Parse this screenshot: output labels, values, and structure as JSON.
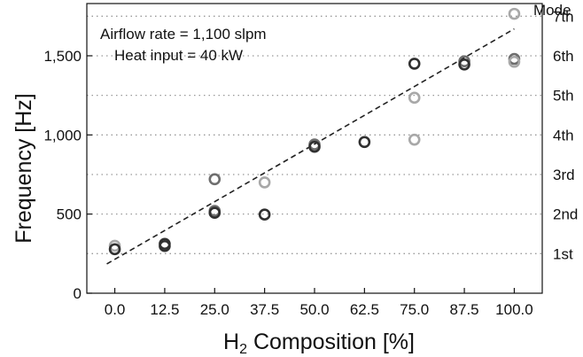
{
  "chart_data": {
    "type": "scatter",
    "xlabel_main": "H",
    "xlabel_sub": "2",
    "xlabel_rest": " Composition [%]",
    "ylabel": "Frequency [Hz]",
    "x_ticks": [
      "0.0",
      "12.5",
      "25.0",
      "37.5",
      "50.0",
      "62.5",
      "75.0",
      "87.5",
      "100.0"
    ],
    "y_ticks": [
      {
        "value": 0,
        "label": "0"
      },
      {
        "value": 500,
        "label": "500"
      },
      {
        "value": 1000,
        "label": "1,000"
      },
      {
        "value": 1500,
        "label": "1,500"
      }
    ],
    "xlim": [
      -7,
      107
    ],
    "ylim": [
      0,
      1830
    ],
    "annotations": [
      "Airflow rate = 1,100 slpm",
      "Heat input = 40 kW"
    ],
    "right_axis_title": "Mode",
    "modes": [
      {
        "label": "1st",
        "value": 250
      },
      {
        "label": "2nd",
        "value": 500
      },
      {
        "label": "3rd",
        "value": 750
      },
      {
        "label": "4th",
        "value": 1000
      },
      {
        "label": "5th",
        "value": 1250
      },
      {
        "label": "6th",
        "value": 1500
      },
      {
        "label": "7th",
        "value": 1750
      }
    ],
    "points": [
      {
        "x": 0.0,
        "y": 300,
        "shade": "light"
      },
      {
        "x": 0.0,
        "y": 278,
        "shade": "dark"
      },
      {
        "x": 12.5,
        "y": 312,
        "shade": "dark"
      },
      {
        "x": 12.5,
        "y": 298,
        "shade": "dark"
      },
      {
        "x": 25.0,
        "y": 720,
        "shade": "mid"
      },
      {
        "x": 25.0,
        "y": 520,
        "shade": "mid"
      },
      {
        "x": 25.0,
        "y": 508,
        "shade": "dark"
      },
      {
        "x": 37.5,
        "y": 700,
        "shade": "light"
      },
      {
        "x": 37.5,
        "y": 497,
        "shade": "dark"
      },
      {
        "x": 50.0,
        "y": 940,
        "shade": "mid"
      },
      {
        "x": 50.0,
        "y": 925,
        "shade": "dark"
      },
      {
        "x": 62.5,
        "y": 955,
        "shade": "dark"
      },
      {
        "x": 75.0,
        "y": 1450,
        "shade": "dark"
      },
      {
        "x": 75.0,
        "y": 1235,
        "shade": "light"
      },
      {
        "x": 75.0,
        "y": 970,
        "shade": "light"
      },
      {
        "x": 87.5,
        "y": 1465,
        "shade": "mid"
      },
      {
        "x": 87.5,
        "y": 1445,
        "shade": "dark"
      },
      {
        "x": 100.0,
        "y": 1765,
        "shade": "light"
      },
      {
        "x": 100.0,
        "y": 1480,
        "shade": "mid"
      },
      {
        "x": 100.0,
        "y": 1462,
        "shade": "light"
      }
    ],
    "fit_line": {
      "x": [
        -2,
        100
      ],
      "y": [
        185,
        1670
      ]
    },
    "grid": "horizontal-dotted-at-modes",
    "colors": {
      "dark": "#303030",
      "mid": "#6e6e6e",
      "light": "#a8a8a8",
      "line": "#222222",
      "grid": "#999999"
    }
  }
}
